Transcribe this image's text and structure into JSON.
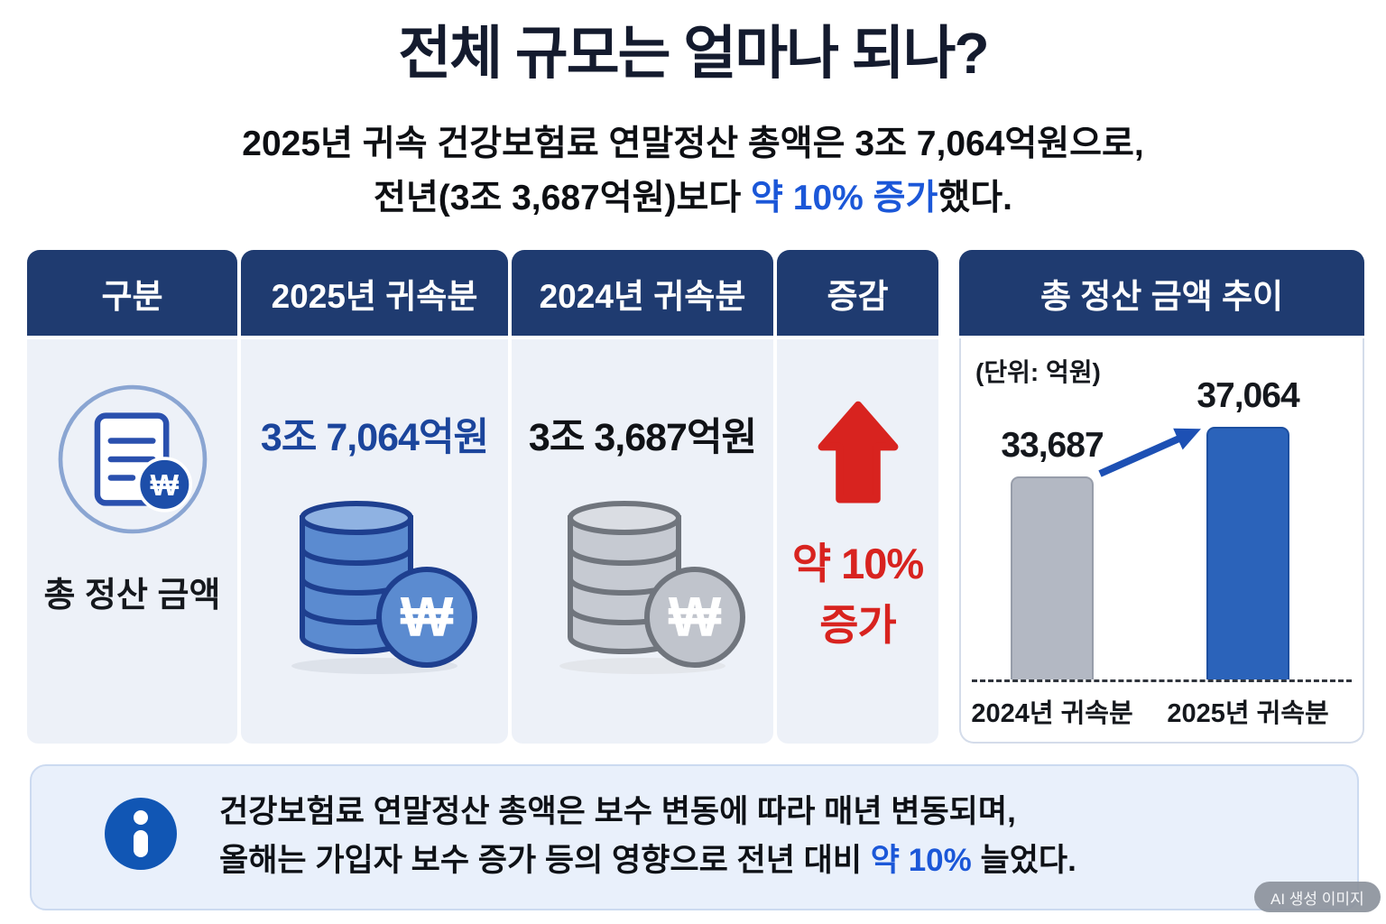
{
  "title": "전체 규모는 얼마나 되나?",
  "subtitle": {
    "line1": "2025년 귀속 건강보험료 연말정산 총액은 3조 7,064억원으로,",
    "line2_prefix": "전년(3조 3,687억원)보다 ",
    "line2_highlight": "약 10% 증가",
    "line2_suffix": "했다."
  },
  "table": {
    "headers": [
      "구분",
      "2025년 귀속분",
      "2024년 귀속분",
      "증감"
    ],
    "row": {
      "label": "총 정산 금액",
      "value_2025": "3조 7,064억원",
      "value_2024": "3조 3,687억원",
      "change_line1": "약 10%",
      "change_line2": "증가"
    }
  },
  "chart": {
    "title": "총 정산 금액 추이",
    "unit_label": "(단위: 억원)"
  },
  "chart_data": {
    "type": "bar",
    "title": "총 정산 금액 추이",
    "unit": "억원",
    "categories": [
      "2024년 귀속분",
      "2025년 귀속분"
    ],
    "values": [
      33687,
      37064
    ],
    "value_labels": [
      "33,687",
      "37,064"
    ],
    "bar_colors": [
      "#b3b8c3",
      "#2b63ba"
    ],
    "ylim": [
      20000,
      37064
    ],
    "grid": false,
    "legend": "none",
    "annotations": [
      "blue increase arrow from 2024 bar top to 2025 bar top",
      "dashed baseline"
    ]
  },
  "note": {
    "line1": "건강보험료 연말정산 총액은 보수 변동에 따라 매년 변동되며,",
    "line2_prefix": "올해는 가입자 보수 증가 등의 영향으로 전년 대비 ",
    "line2_highlight": "약 10%",
    "line2_suffix": " 늘었다."
  },
  "badge": "AI 생성 이미지",
  "colors": {
    "header_navy": "#1f3b70",
    "title_navy": "#141b2e",
    "accent_blue": "#1b57d8",
    "value_blue": "#1b459c",
    "red": "#d8231f",
    "bar_gray": "#b3b8c3",
    "bar_blue": "#2b63ba",
    "cell_bg": "#edf1f8",
    "note_bg": "#e9f0fb"
  }
}
